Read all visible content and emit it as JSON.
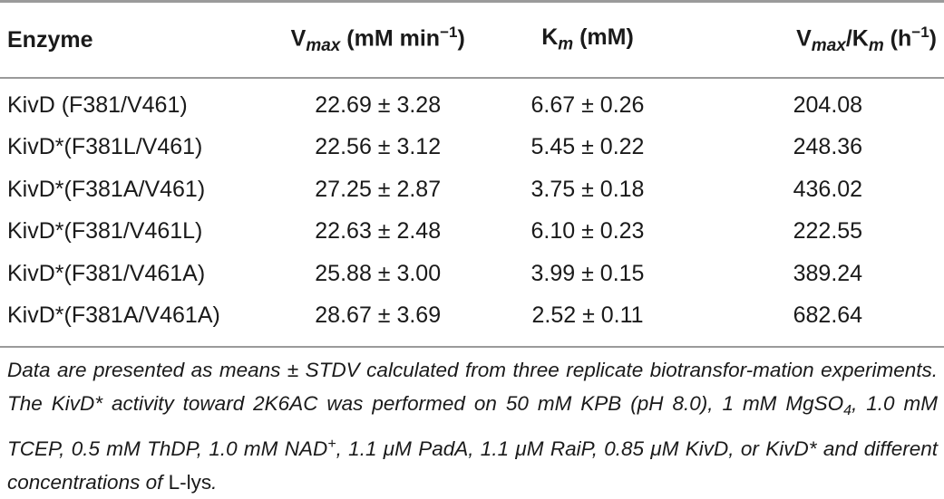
{
  "table": {
    "header": {
      "enzyme": "Enzyme",
      "vmax_base": "V",
      "vmax_sub": "max",
      "vmax_unit_pre": " (mM min",
      "vmax_unit_sup": "−1",
      "vmax_unit_post": ")",
      "km_base": "K",
      "km_sub": "m",
      "km_unit": " (mM)",
      "ratio_v": "V",
      "ratio_vsub": "max",
      "ratio_slash": "/K",
      "ratio_ksub": "m",
      "ratio_unit_pre": " (h",
      "ratio_unit_sup": "−1",
      "ratio_unit_post": ")"
    },
    "rows": [
      {
        "enzyme": "KivD (F381/V461)",
        "vmax": "22.69 ± 3.28",
        "km": "6.67 ± 0.26",
        "ratio": "204.08"
      },
      {
        "enzyme": "KivD*(F381L/V461)",
        "vmax": "22.56 ± 3.12",
        "km": "5.45 ± 0.22",
        "ratio": "248.36"
      },
      {
        "enzyme": "KivD*(F381A/V461)",
        "vmax": "27.25 ± 2.87",
        "km": "3.75 ± 0.18",
        "ratio": "436.02"
      },
      {
        "enzyme": "KivD*(F381/V461L)",
        "vmax": "22.63 ± 2.48",
        "km": "6.10 ± 0.23",
        "ratio": "222.55"
      },
      {
        "enzyme": "KivD*(F381/V461A)",
        "vmax": "25.88 ± 3.00",
        "km": "3.99 ± 0.15",
        "ratio": "389.24"
      },
      {
        "enzyme": "KivD*(F381A/V461A)",
        "vmax": "28.67 ± 3.69",
        "km": "2.52 ± 0.11",
        "ratio": "682.64"
      }
    ]
  },
  "footnote": {
    "part1": "Data are presented as means ± STDV calculated from three replicate biotransfor-mation experiments. The KivD* activity toward 2K6AC was performed on 50 mM KPB (pH 8.0), 1 mM MgSO",
    "mgso4_sub": "4",
    "part2": ", 1.0 mM TCEP, 0.5 mM ThDP, 1.0 mM NAD",
    "nad_sup": "+",
    "part3": ", 1.1 μM PadA, 1.1 μM RaiP, 0.85 μM KivD, or KivD* and different concentrations of ",
    "lys": "L-lys",
    "part4": "."
  }
}
